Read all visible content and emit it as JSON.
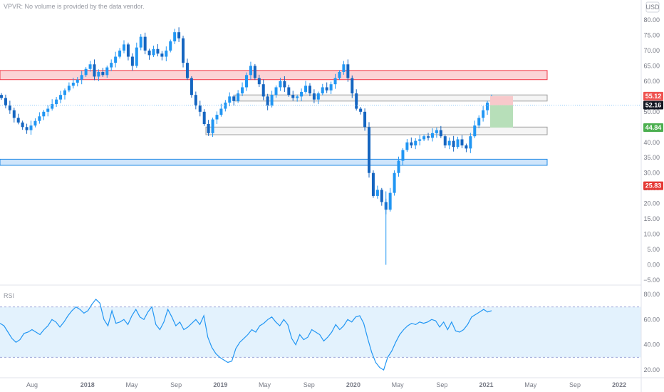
{
  "header": {
    "indicator_note": "VPVR: No volume is provided by the data vendor.",
    "currency": "USD"
  },
  "colors": {
    "up": "#2196f3",
    "down": "#1565c0",
    "resistance_red": "#f23645",
    "support_blue": "#1e88e5",
    "rsi_line": "#2196f3",
    "rsi_fill": "#e3f2fd",
    "target_green": "#4caf50",
    "stop_red": "#ef5350",
    "last_price_bg": "#131722"
  },
  "icons": {
    "currency_settings": "gear-icon"
  },
  "chart_data": [
    {
      "type": "candlestick",
      "title": "",
      "ylim": [
        -5,
        80
      ],
      "y_ticks": [
        80,
        75,
        70,
        65,
        60,
        55,
        50,
        45,
        40,
        35,
        30,
        25,
        20,
        15,
        10,
        5,
        0,
        -5
      ],
      "y_tick_labels": [
        "80.00",
        "75.00",
        "70.00",
        "65.00",
        "60.00",
        "55.00",
        "50.00",
        "45.00",
        "40.00",
        "35.00",
        "30.00",
        "25.00",
        "20.00",
        "15.00",
        "10.00",
        "5.00",
        "0.00",
        "−5.00"
      ],
      "x_tick_labels": [
        "Aug",
        "2018",
        "May",
        "Sep",
        "2019",
        "May",
        "Sep",
        "2020",
        "May",
        "Sep",
        "2021",
        "May",
        "Sep",
        "2022"
      ],
      "x_ticks_months": [
        0,
        5,
        9,
        13,
        17,
        21,
        25,
        29,
        33,
        37,
        41,
        45,
        49,
        53
      ],
      "series": [
        {
          "name": "",
          "ohlc_weekly_close": [
            54.5,
            52.0,
            50.5,
            48.0,
            46.5,
            45.0,
            44.0,
            45.5,
            47.0,
            48.5,
            50.0,
            51.0,
            52.5,
            54.0,
            55.5,
            57.0,
            58.5,
            59.5,
            60.5,
            62.0,
            64.0,
            65.5,
            61.5,
            63.0,
            62.0,
            64.5,
            66.0,
            68.0,
            70.0,
            72.0,
            68.0,
            65.0,
            71.0,
            74.5,
            70.0,
            68.5,
            70.5,
            69.0,
            68.0,
            70.0,
            73.0,
            76.0,
            74.0,
            66.0,
            61.0,
            55.5,
            52.0,
            50.0,
            46.0,
            43.0,
            47.5,
            49.0,
            51.0,
            53.0,
            55.0,
            53.5,
            56.0,
            58.0,
            62.0,
            65.0,
            61.0,
            59.0,
            55.0,
            52.0,
            55.5,
            58.0,
            60.0,
            58.0,
            55.5,
            54.5,
            55.0,
            56.5,
            58.5,
            56.0,
            54.0,
            56.0,
            58.0,
            57.0,
            59.0,
            61.0,
            63.0,
            65.5,
            61.0,
            56.0,
            51.0,
            50.0,
            45.0,
            30.0,
            22.5,
            24.5,
            20.5,
            18.0,
            23.5,
            30.0,
            34.0,
            37.5,
            40.0,
            39.0,
            40.5,
            41.0,
            42.0,
            41.5,
            43.0,
            44.0,
            42.0,
            39.0,
            40.5,
            38.5,
            41.0,
            39.0,
            38.0,
            42.0,
            45.5,
            48.0,
            50.5,
            53.0,
            54.5
          ]
        }
      ],
      "annotations": {
        "last_price": 52.16,
        "last_price_label": "52.16",
        "target_price_label": "55.12",
        "entry_price_label": "44.84",
        "stop_price_label": "25.83",
        "zones": [
          {
            "name": "resistance",
            "low": 60.5,
            "high": 63.5
          },
          {
            "name": "upper-range",
            "low": 53.5,
            "high": 55.5
          },
          {
            "name": "lower-range",
            "low": 42.5,
            "high": 45.0
          },
          {
            "name": "support",
            "low": 32.5,
            "high": 34.5
          }
        ]
      },
      "grid": false
    },
    {
      "type": "line",
      "title": "",
      "legend": "RSI",
      "ylim": [
        15,
        85
      ],
      "y_ticks": [
        80,
        60,
        40,
        20
      ],
      "y_tick_labels": [
        "80.00",
        "60.00",
        "40.00",
        "20.00"
      ],
      "bands": [
        30,
        70
      ],
      "series": [
        {
          "name": "",
          "values": [
            57,
            55,
            50,
            45,
            42,
            44,
            49,
            50,
            52,
            50,
            48,
            52,
            55,
            60,
            58,
            54,
            58,
            63,
            67,
            70,
            68,
            65,
            67,
            72,
            76,
            73,
            60,
            55,
            67,
            57,
            58,
            60,
            56,
            63,
            68,
            62,
            60,
            66,
            70,
            56,
            52,
            58,
            68,
            62,
            55,
            58,
            52,
            54,
            57,
            60,
            56,
            63,
            46,
            38,
            33,
            30,
            28,
            26,
            27,
            37,
            42,
            45,
            48,
            52,
            50,
            55,
            57,
            60,
            62,
            58,
            55,
            60,
            56,
            45,
            40,
            48,
            44,
            46,
            52,
            50,
            48,
            43,
            46,
            50,
            56,
            52,
            55,
            60,
            58,
            62,
            63,
            57,
            45,
            34,
            26,
            22,
            20,
            30,
            35,
            42,
            48,
            52,
            55,
            57,
            56,
            58,
            57,
            58,
            60,
            59,
            54,
            58,
            52,
            58,
            51,
            50,
            52,
            56,
            62,
            64,
            66,
            68,
            66,
            67
          ]
        }
      ],
      "grid": false
    }
  ]
}
